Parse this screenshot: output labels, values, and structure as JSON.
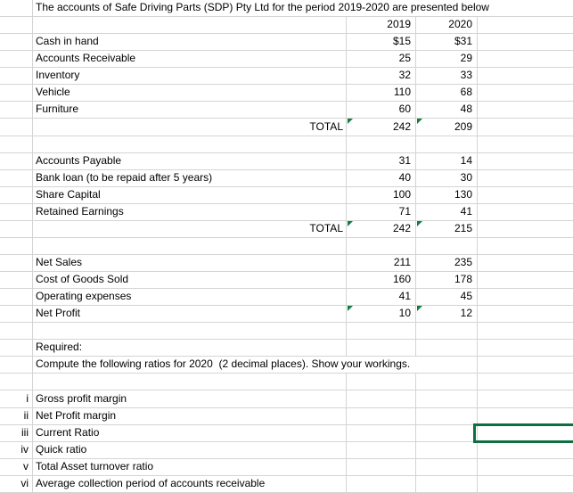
{
  "colors": {
    "gridline": "#d4d4d4",
    "marker_green": "#107c41",
    "selection_green": "#0d6e40"
  },
  "sheet": {
    "title_row_text": "The accounts of Safe Driving Parts (SDP) Pty Ltd for the period 2019-2020 are presented below",
    "year_headers": [
      "2019",
      "2020"
    ],
    "rows": [
      {
        "label": "",
        "desc": "The accounts of Safe Driving Parts (SDP) Pty Ltd for the period 2019-2020 are presented below",
        "span": "BCDE"
      },
      {
        "label": "",
        "desc": "",
        "y2019": "2019",
        "y2020": "2020"
      },
      {
        "label": "",
        "desc": "Cash in hand",
        "y2019": "$15",
        "y2020": "$31"
      },
      {
        "label": "",
        "desc": "Accounts Receivable",
        "y2019": "25",
        "y2020": "29"
      },
      {
        "label": "",
        "desc": "Inventory",
        "y2019": "32",
        "y2020": "33"
      },
      {
        "label": "",
        "desc": "Vehicle",
        "y2019": "110",
        "y2020": "68"
      },
      {
        "label": "",
        "desc": "Furniture",
        "y2019": "60",
        "y2020": "48"
      },
      {
        "label": "",
        "desc": "TOTAL",
        "desc_align": "right",
        "y2019": "242",
        "y2020": "209",
        "markers": [
          "y2019",
          "y2020"
        ]
      },
      {
        "label": "",
        "desc": ""
      },
      {
        "label": "",
        "desc": "Accounts Payable",
        "y2019": "31",
        "y2020": "14"
      },
      {
        "label": "",
        "desc": "Bank loan (to be repaid after 5 years)",
        "y2019": "40",
        "y2020": "30"
      },
      {
        "label": "",
        "desc": "Share Capital",
        "y2019": "100",
        "y2020": "130"
      },
      {
        "label": "",
        "desc": "Retained Earnings",
        "y2019": "71",
        "y2020": "41"
      },
      {
        "label": "",
        "desc": "TOTAL",
        "desc_align": "right",
        "y2019": "242",
        "y2020": "215",
        "markers": [
          "y2019",
          "y2020"
        ]
      },
      {
        "label": "",
        "desc": ""
      },
      {
        "label": "",
        "desc": "Net Sales",
        "y2019": "211",
        "y2020": "235"
      },
      {
        "label": "",
        "desc": "Cost of Goods Sold",
        "y2019": "160",
        "y2020": "178"
      },
      {
        "label": "",
        "desc": "Operating expenses",
        "y2019": "41",
        "y2020": "45"
      },
      {
        "label": "",
        "desc": "Net Profit",
        "y2019": "10",
        "y2020": "12",
        "markers": [
          "y2019",
          "y2020"
        ]
      },
      {
        "label": "",
        "desc": ""
      },
      {
        "label": "",
        "desc": "Required:"
      },
      {
        "label": "",
        "desc": "Compute the following ratios for 2020  (2 decimal places). Show your workings.",
        "span": "BCD"
      },
      {
        "label": "",
        "desc": ""
      },
      {
        "label": "i",
        "desc": "Gross profit margin"
      },
      {
        "label": "ii",
        "desc": "Net Profit margin"
      },
      {
        "label": "iii",
        "desc": "Current Ratio",
        "selected": true
      },
      {
        "label": "iv",
        "desc": "Quick ratio"
      },
      {
        "label": "v",
        "desc": "Total Asset turnover ratio"
      },
      {
        "label": "vi",
        "desc": "Average collection period of accounts receivable"
      }
    ]
  }
}
